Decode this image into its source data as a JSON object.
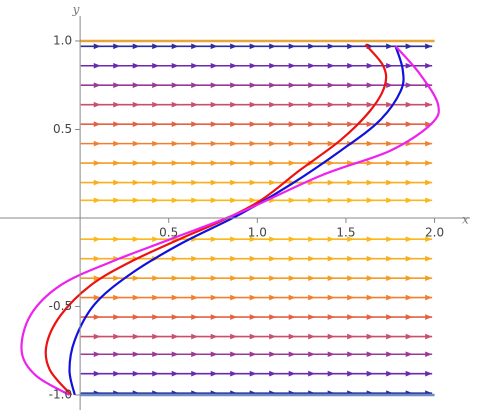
{
  "chart_data": {
    "type": "streamplot",
    "xlabel": "x",
    "ylabel": "y",
    "xlim": [
      -0.452,
      2.2
    ],
    "ylim": [
      -1.085,
      1.175
    ],
    "xticks": [
      0.5,
      {
        "value": 1,
        "label": "1.0"
      },
      1.5,
      {
        "value": 2,
        "label": "2.0"
      }
    ],
    "yticks": [
      {
        "value": -1,
        "label": "-1.0"
      },
      -0.5,
      0.5,
      {
        "value": 1,
        "label": "1.0"
      }
    ],
    "hlines": [
      {
        "y": 1,
        "color": "#e8a33c"
      },
      {
        "y": -1,
        "color": "#6a8fc7"
      }
    ],
    "arrow_x": [
      0.06,
      0.17,
      0.28,
      0.39,
      0.5,
      0.61,
      0.72,
      0.83,
      0.94,
      1.05,
      1.16,
      1.27,
      1.38,
      1.49,
      1.6,
      1.71,
      1.82,
      1.93
    ],
    "arrow_rows": [
      {
        "y": 0.97,
        "color": "#2c2c9c"
      },
      {
        "y": 0.86,
        "color": "#6a2ab0"
      },
      {
        "y": 0.75,
        "color": "#9a3a98"
      },
      {
        "y": 0.64,
        "color": "#c8506e"
      },
      {
        "y": 0.53,
        "color": "#e36244"
      },
      {
        "y": 0.42,
        "color": "#f08030"
      },
      {
        "y": 0.31,
        "color": "#f59c22"
      },
      {
        "y": 0.2,
        "color": "#f8ae1e"
      },
      {
        "y": 0.1,
        "color": "#fbb818"
      },
      {
        "y": -0.12,
        "color": "#fbb818"
      },
      {
        "y": -0.23,
        "color": "#f8ae1e"
      },
      {
        "y": -0.34,
        "color": "#f59c22"
      },
      {
        "y": -0.45,
        "color": "#f08030"
      },
      {
        "y": -0.56,
        "color": "#e36244"
      },
      {
        "y": -0.67,
        "color": "#c8506e"
      },
      {
        "y": -0.77,
        "color": "#9a3a98"
      },
      {
        "y": -0.88,
        "color": "#6a2ab0"
      },
      {
        "y": -0.99,
        "color": "#2c2c9c"
      }
    ],
    "series": [
      {
        "color": "#ee1111",
        "x": [
          -0.05,
          -0.17,
          -0.19,
          -0.11,
          0.06,
          0.28,
          0.56,
          0.79,
          1.02,
          1.24,
          1.47,
          1.64,
          1.72,
          1.71,
          1.61
        ],
        "y": [
          -1.0,
          -0.86,
          -0.72,
          -0.55,
          -0.38,
          -0.25,
          -0.12,
          -0.02,
          0.1,
          0.27,
          0.44,
          0.61,
          0.75,
          0.86,
          0.98
        ]
      },
      {
        "color": "#1111dd",
        "x": [
          -0.03,
          -0.06,
          -0.03,
          0.08,
          0.28,
          0.56,
          0.9,
          1.19,
          1.47,
          1.69,
          1.81,
          1.82,
          1.78
        ],
        "y": [
          -1.0,
          -0.86,
          -0.69,
          -0.49,
          -0.32,
          -0.15,
          0.02,
          0.19,
          0.38,
          0.55,
          0.72,
          0.84,
          0.97
        ]
      },
      {
        "color": "#ee22ee",
        "x": [
          -0.06,
          -0.25,
          -0.33,
          -0.28,
          -0.11,
          0.17,
          0.51,
          0.9,
          1.36,
          1.75,
          1.98,
          2.02,
          1.92,
          1.78
        ],
        "y": [
          -1.0,
          -0.89,
          -0.75,
          -0.55,
          -0.38,
          -0.25,
          -0.12,
          0.03,
          0.24,
          0.38,
          0.53,
          0.64,
          0.81,
          0.97
        ]
      }
    ]
  }
}
